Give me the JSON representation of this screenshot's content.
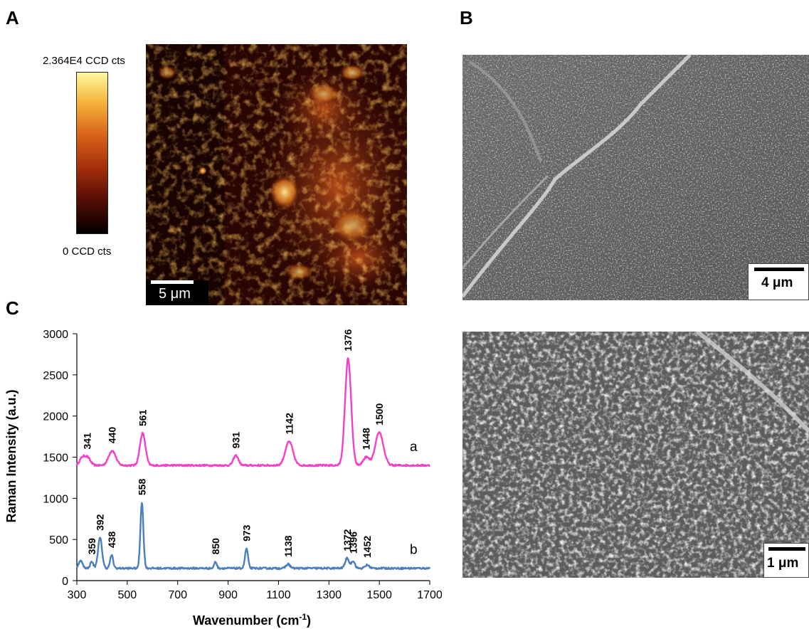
{
  "panels": {
    "a": "A",
    "b": "B",
    "c": "C"
  },
  "colorbar": {
    "max_label": "2.364E4 CCD cts",
    "min_label": "0 CCD cts"
  },
  "raman_map": {
    "scalebar_label": "5 μm"
  },
  "sem_top": {
    "scalebar_label": "4 μm"
  },
  "sem_bottom": {
    "scalebar_label": "1 μm"
  },
  "colors": {
    "trace_a": "#f53fc8",
    "trace_b": "#4a7fc0"
  },
  "chart_data": {
    "type": "line",
    "xlabel": "Wavenumber (cm",
    "xlabel_sup": "-1",
    "xlabel_end": ")",
    "ylabel": "Raman Intensity (a.u.)",
    "xlim": [
      300,
      1700
    ],
    "ylim": [
      0,
      3000
    ],
    "xticks": [
      300,
      500,
      700,
      900,
      1100,
      1300,
      1500,
      1700
    ],
    "yticks": [
      0,
      500,
      1000,
      1500,
      2000,
      2500,
      3000
    ],
    "series": [
      {
        "name": "a",
        "color": "#f53fc8",
        "baseline": 1400,
        "peaks": [
          [
            320,
            80,
            10
          ],
          [
            341,
            100,
            12
          ],
          [
            440,
            180,
            14
          ],
          [
            561,
            390,
            11
          ],
          [
            931,
            120,
            10
          ],
          [
            1142,
            290,
            15
          ],
          [
            1376,
            1300,
            12
          ],
          [
            1448,
            100,
            12
          ],
          [
            1500,
            400,
            16
          ]
        ],
        "labels": [
          {
            "x": 341,
            "text": "341"
          },
          {
            "x": 440,
            "text": "440"
          },
          {
            "x": 561,
            "text": "561"
          },
          {
            "x": 931,
            "text": "931"
          },
          {
            "x": 1142,
            "text": "1142"
          },
          {
            "x": 1376,
            "text": "1376"
          },
          {
            "x": 1448,
            "text": "1448"
          },
          {
            "x": 1500,
            "text": "1500"
          }
        ]
      },
      {
        "name": "b",
        "color": "#4a7fc0",
        "baseline": 150,
        "peaks": [
          [
            315,
            90,
            8
          ],
          [
            359,
            80,
            6
          ],
          [
            392,
            370,
            8
          ],
          [
            438,
            160,
            6
          ],
          [
            558,
            800,
            6
          ],
          [
            850,
            80,
            5
          ],
          [
            973,
            240,
            6
          ],
          [
            1138,
            50,
            8
          ],
          [
            1372,
            120,
            8
          ],
          [
            1396,
            90,
            7
          ],
          [
            1452,
            40,
            8
          ]
        ],
        "labels": [
          {
            "x": 359,
            "text": "359"
          },
          {
            "x": 392,
            "text": "392"
          },
          {
            "x": 438,
            "text": "438"
          },
          {
            "x": 558,
            "text": "558"
          },
          {
            "x": 850,
            "text": "850"
          },
          {
            "x": 973,
            "text": "973"
          },
          {
            "x": 1138,
            "text": "1138"
          },
          {
            "x": 1372,
            "text": "1372"
          },
          {
            "x": 1396,
            "text": "1396"
          },
          {
            "x": 1452,
            "text": "1452"
          }
        ]
      }
    ]
  }
}
